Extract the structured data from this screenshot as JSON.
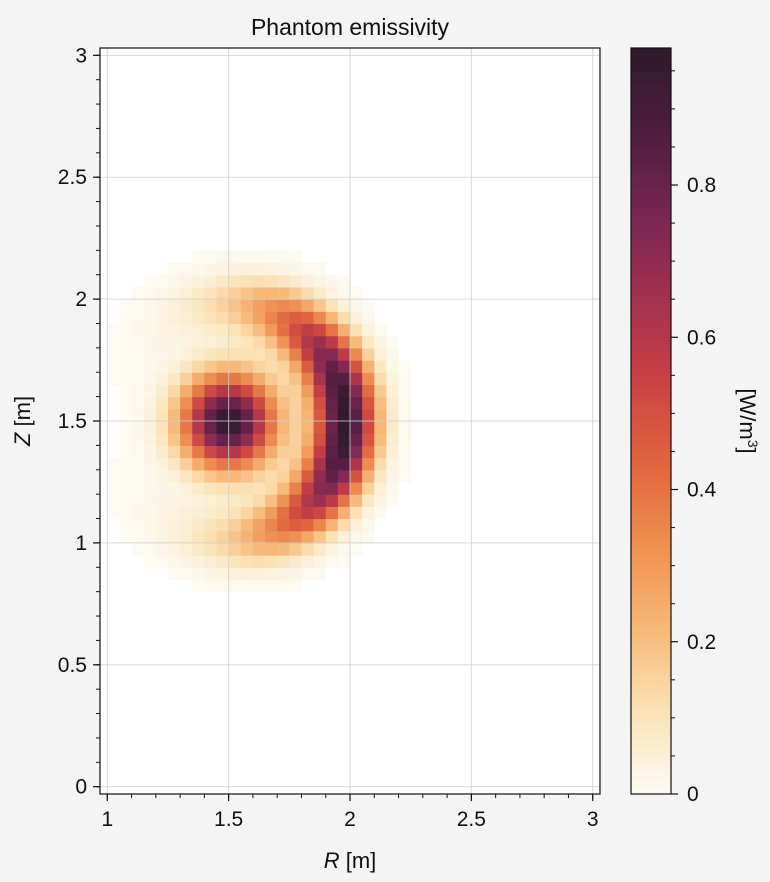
{
  "chart_data": {
    "type": "heatmap",
    "title": "Phantom emissivity",
    "xlabel": {
      "var": "R",
      "unit": " [m]"
    },
    "ylabel": {
      "var": "Z",
      "unit": " [m]"
    },
    "xlim": [
      0.97,
      3.03
    ],
    "ylim": [
      -0.03,
      3.03
    ],
    "xticks": [
      1,
      1.5,
      2,
      2.5,
      3
    ],
    "xtick_labels": [
      "1",
      "1.5",
      "2",
      "2.5",
      "3"
    ],
    "yticks": [
      0,
      0.5,
      1,
      1.5,
      2,
      2.5,
      3
    ],
    "ytick_labels": [
      "0",
      "0.5",
      "1",
      "1.5",
      "2",
      "2.5",
      "3"
    ],
    "grid": true,
    "grid_resolution": {
      "r_step": 0.05,
      "z_step": 0.05
    },
    "features": [
      {
        "name": "core blob",
        "shape": "gaussian",
        "center_r": 1.5,
        "center_z": 1.5,
        "width": 0.13,
        "peak": 0.97
      },
      {
        "name": "crescent",
        "shape": "arc",
        "center_r": 1.5,
        "center_z": 1.5,
        "radius": 0.48,
        "thickness": 0.085,
        "angle_extent_deg": 48,
        "peak": 0.97
      }
    ],
    "colorbar": {
      "label": "[W/m",
      "label_sup": "3",
      "label_end": "]",
      "range": [
        0,
        0.98
      ],
      "ticks": [
        0,
        0.2,
        0.4,
        0.6,
        0.8
      ],
      "tick_labels": [
        "0",
        "0.2",
        "0.4",
        "0.6",
        "0.8"
      ],
      "colormap": "rocket_r",
      "stops": [
        "#fcfbf4",
        "#fbe2b6",
        "#f6b878",
        "#ef8f51",
        "#df653f",
        "#c84145",
        "#a1304f",
        "#772654",
        "#4c1d3e",
        "#2f1a2b"
      ]
    },
    "colors": {
      "grid": "#cfcfcf",
      "frame": "#111111",
      "background": "#f4f4f4"
    }
  }
}
